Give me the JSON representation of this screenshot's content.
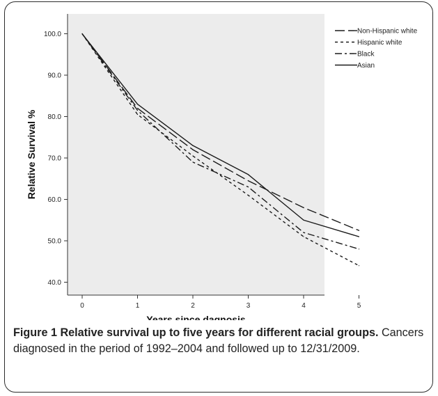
{
  "chart_data": {
    "type": "line",
    "x": [
      0,
      1,
      2,
      3,
      4,
      5
    ],
    "xlabel": "Years since dagnosis",
    "ylabel": "Relative Survival %",
    "ylim": [
      37.0,
      102.0
    ],
    "yticks": [
      "40.0",
      "50.0",
      "60.0",
      "70.0",
      "80.0",
      "90.0",
      "100.0"
    ],
    "xticks": [
      "0",
      "1",
      "2",
      "3",
      "4",
      "5"
    ],
    "grid": false,
    "legend_position": "top-right",
    "series": [
      {
        "name": "Non-Hispanic white",
        "values": [
          100.0,
          82.0,
          72.0,
          64.5,
          58.0,
          52.5
        ],
        "dash": "14 5"
      },
      {
        "name": "Hispanic white",
        "values": [
          100.0,
          80.5,
          70.5,
          61.0,
          51.0,
          44.0
        ],
        "dash": "4 4"
      },
      {
        "name": "Black",
        "values": [
          100.0,
          81.5,
          69.0,
          63.0,
          52.0,
          48.0
        ],
        "dash": "10 4 3 4"
      },
      {
        "name": "Asian",
        "values": [
          100.0,
          83.0,
          73.0,
          66.0,
          55.0,
          51.0
        ],
        "dash": ""
      }
    ]
  },
  "caption": {
    "title": "Figure 1 Relative survival up to five years for different racial groups.",
    "text": " Cancers diagnosed in the period of 1992–2004 and followed up to 12/31/2009."
  }
}
